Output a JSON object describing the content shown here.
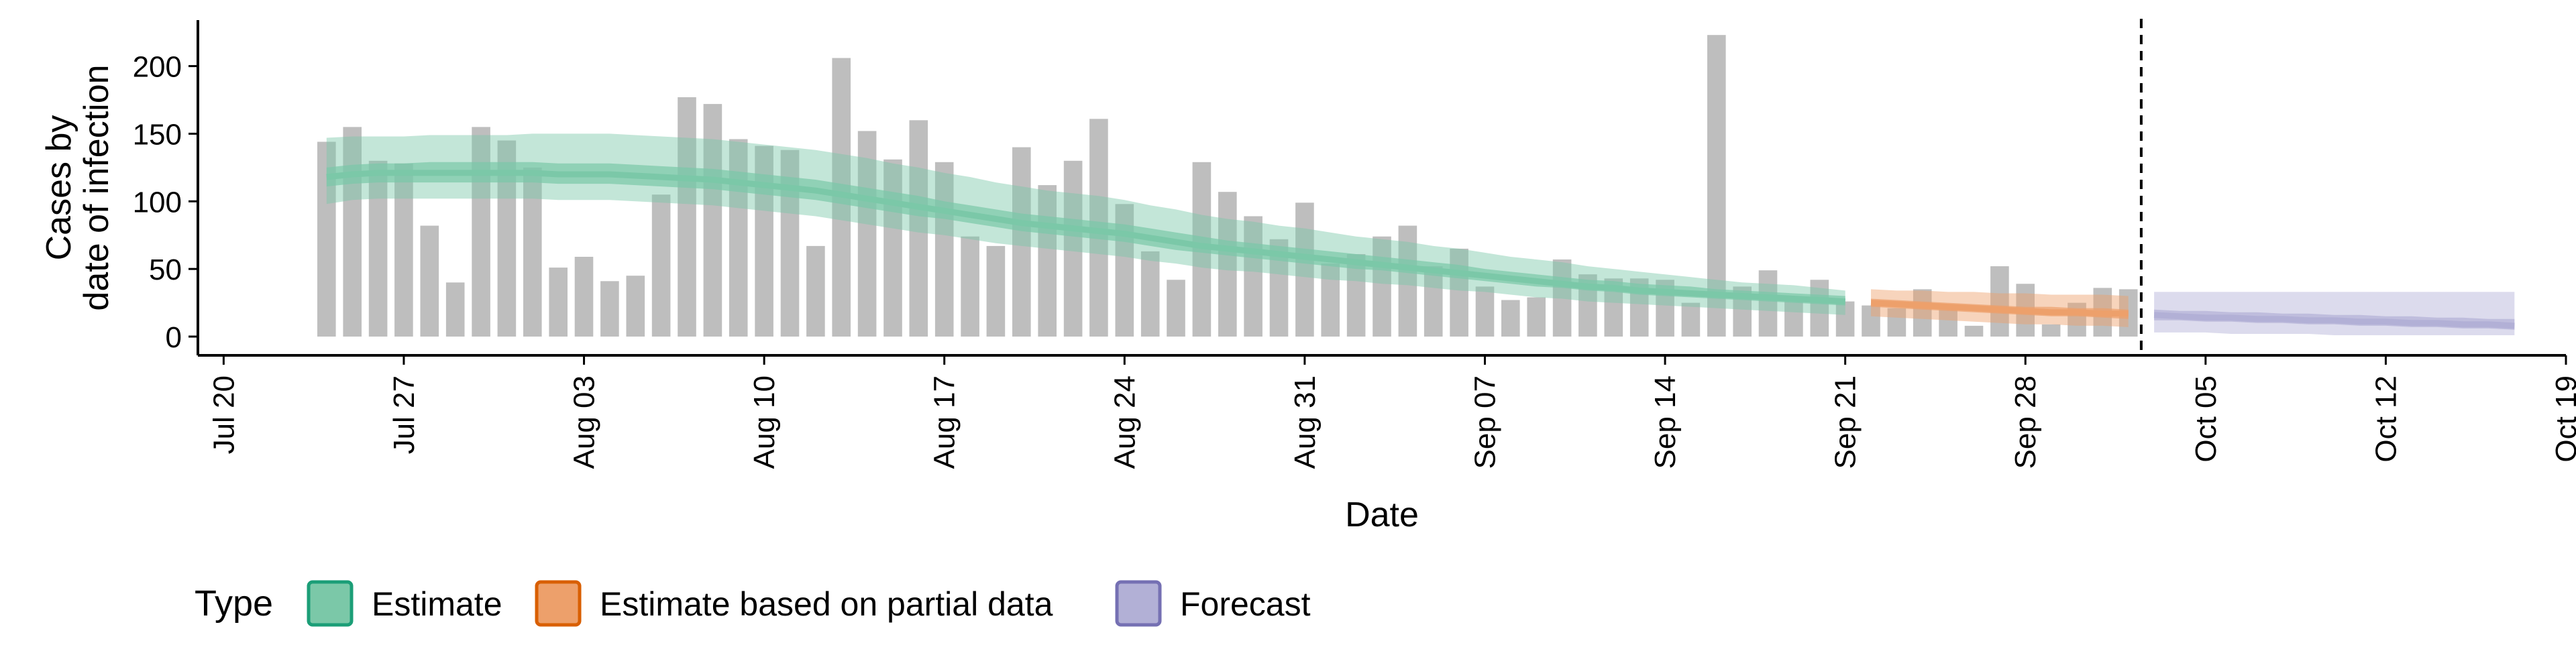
{
  "chart_data": {
    "type": "bar",
    "xlabel": "Date",
    "ylabel_lines": [
      "Cases by",
      "date of infection"
    ],
    "ylim": [
      0,
      235
    ],
    "y_ticks": [
      0,
      50,
      100,
      150,
      200
    ],
    "x_domain": [
      "2020-07-19",
      "2020-10-19"
    ],
    "x_ticks": [
      {
        "date": "2020-07-20",
        "label": "Jul 20"
      },
      {
        "date": "2020-07-27",
        "label": "Jul 27"
      },
      {
        "date": "2020-08-03",
        "label": "Aug 03"
      },
      {
        "date": "2020-08-10",
        "label": "Aug 10"
      },
      {
        "date": "2020-08-17",
        "label": "Aug 17"
      },
      {
        "date": "2020-08-24",
        "label": "Aug 24"
      },
      {
        "date": "2020-08-31",
        "label": "Aug 31"
      },
      {
        "date": "2020-09-07",
        "label": "Sep 07"
      },
      {
        "date": "2020-09-14",
        "label": "Sep 14"
      },
      {
        "date": "2020-09-21",
        "label": "Sep 21"
      },
      {
        "date": "2020-09-28",
        "label": "Sep 28"
      },
      {
        "date": "2020-10-05",
        "label": "Oct 05"
      },
      {
        "date": "2020-10-12",
        "label": "Oct 12"
      },
      {
        "date": "2020-10-19",
        "label": "Oct 19"
      }
    ],
    "bars": {
      "start_date": "2020-07-24",
      "color": "#bebebe",
      "values": [
        144,
        155,
        130,
        128,
        82,
        40,
        155,
        145,
        125,
        51,
        59,
        41,
        45,
        105,
        177,
        172,
        146,
        141,
        138,
        67,
        206,
        152,
        131,
        160,
        129,
        74,
        67,
        140,
        112,
        130,
        161,
        98,
        63,
        42,
        129,
        107,
        89,
        72,
        99,
        54,
        61,
        74,
        82,
        52,
        65,
        37,
        27,
        29,
        57,
        46,
        43,
        43,
        42,
        25,
        223,
        37,
        49,
        26,
        42,
        26,
        23,
        21,
        35,
        20,
        8,
        52,
        39,
        9,
        25,
        36,
        35
      ]
    },
    "nowcast_date": "2020-10-02",
    "series": [
      {
        "name": "Estimate",
        "color": "#1b9e77",
        "fill": "#7bc8a8",
        "start_date": "2020-07-24",
        "median": [
          118,
          120,
          121,
          121,
          121,
          121,
          121,
          121,
          121,
          120,
          120,
          120,
          119,
          118,
          117,
          116,
          114,
          112,
          110,
          108,
          105,
          102,
          99,
          96,
          93,
          90,
          87,
          84,
          82,
          80,
          78,
          76,
          73,
          70,
          67,
          65,
          63,
          61,
          59,
          57,
          55,
          53,
          51,
          49,
          47,
          45,
          43,
          41,
          39,
          37,
          36,
          34,
          33,
          32,
          31,
          30,
          29,
          28,
          27,
          26
        ],
        "inner_low": [
          111,
          113,
          114,
          114,
          114,
          114,
          114,
          114,
          114,
          113,
          113,
          113,
          112,
          111,
          110,
          109,
          107,
          105,
          103,
          101,
          98,
          95,
          92,
          89,
          87,
          84,
          81,
          78,
          76,
          74,
          72,
          70,
          67,
          64,
          62,
          60,
          58,
          56,
          54,
          52,
          50,
          49,
          47,
          45,
          43,
          41,
          39,
          37,
          36,
          34,
          33,
          31,
          30,
          29,
          28,
          27,
          26,
          25,
          24,
          23
        ],
        "inner_high": [
          125,
          127,
          128,
          128,
          129,
          129,
          129,
          129,
          129,
          128,
          128,
          128,
          127,
          126,
          125,
          124,
          122,
          120,
          118,
          116,
          113,
          110,
          107,
          104,
          100,
          97,
          94,
          91,
          89,
          87,
          85,
          83,
          80,
          77,
          74,
          71,
          69,
          67,
          65,
          63,
          61,
          59,
          57,
          55,
          53,
          50,
          48,
          46,
          44,
          42,
          41,
          39,
          38,
          37,
          35,
          34,
          33,
          32,
          31,
          30
        ],
        "outer_low": [
          98,
          101,
          102,
          102,
          102,
          102,
          102,
          102,
          102,
          101,
          101,
          101,
          100,
          99,
          98,
          97,
          95,
          93,
          91,
          89,
          86,
          83,
          80,
          77,
          75,
          72,
          69,
          67,
          65,
          63,
          61,
          59,
          56,
          54,
          51,
          49,
          48,
          46,
          44,
          42,
          41,
          39,
          38,
          36,
          34,
          33,
          31,
          29,
          28,
          26,
          25,
          24,
          23,
          22,
          21,
          20,
          19,
          18,
          17,
          16
        ],
        "outer_high": [
          147,
          148,
          148,
          148,
          149,
          149,
          149,
          149,
          150,
          150,
          150,
          150,
          149,
          148,
          147,
          146,
          144,
          142,
          140,
          138,
          135,
          132,
          128,
          125,
          121,
          118,
          114,
          111,
          108,
          106,
          104,
          101,
          97,
          94,
          90,
          87,
          85,
          82,
          80,
          77,
          74,
          72,
          70,
          67,
          65,
          62,
          59,
          57,
          55,
          52,
          50,
          48,
          46,
          44,
          42,
          40,
          39,
          38,
          36,
          34
        ]
      },
      {
        "name": "Estimate based on partial data",
        "color": "#d95f02",
        "fill": "#eda06b",
        "start_date": "2020-09-22",
        "median": [
          25,
          24,
          23,
          22,
          21,
          20,
          19,
          18,
          18,
          17,
          17
        ],
        "inner_low": [
          22,
          21,
          20,
          19,
          18,
          17,
          16,
          15,
          15,
          14,
          13
        ],
        "inner_high": [
          28,
          27,
          26,
          25,
          24,
          23,
          22,
          22,
          21,
          21,
          20
        ],
        "outer_low": [
          15,
          14,
          13,
          12,
          11,
          10,
          9,
          9,
          8,
          8,
          7
        ],
        "outer_high": [
          35,
          34,
          34,
          33,
          33,
          32,
          32,
          31,
          31,
          31,
          30
        ]
      },
      {
        "name": "Forecast",
        "color": "#7570b3",
        "fill": "#b2b0d6",
        "start_date": "2020-10-03",
        "median": [
          16,
          15,
          14,
          14,
          13,
          13,
          12,
          12,
          11,
          11,
          10,
          10,
          9,
          9,
          8
        ],
        "inner_low": [
          12,
          12,
          11,
          11,
          10,
          10,
          9,
          9,
          8,
          8,
          7,
          7,
          6,
          6,
          5
        ],
        "inner_high": [
          20,
          19,
          19,
          18,
          18,
          17,
          17,
          16,
          16,
          15,
          15,
          14,
          14,
          13,
          13
        ],
        "outer_low": [
          3,
          3,
          3,
          2,
          2,
          2,
          2,
          1,
          1,
          1,
          1,
          1,
          1,
          1,
          1
        ],
        "outer_high": [
          33,
          33,
          33,
          33,
          33,
          33,
          33,
          33,
          33,
          33,
          33,
          33,
          33,
          33,
          33
        ]
      }
    ],
    "legend": {
      "title": "Type",
      "position": "bottom",
      "items": [
        {
          "label": "Estimate",
          "fill": "#7bc8a8",
          "stroke": "#1b9e77"
        },
        {
          "label": "Estimate based on partial data",
          "fill": "#eda06b",
          "stroke": "#d95f02"
        },
        {
          "label": "Forecast",
          "fill": "#b2b0d6",
          "stroke": "#7570b3"
        }
      ]
    }
  }
}
